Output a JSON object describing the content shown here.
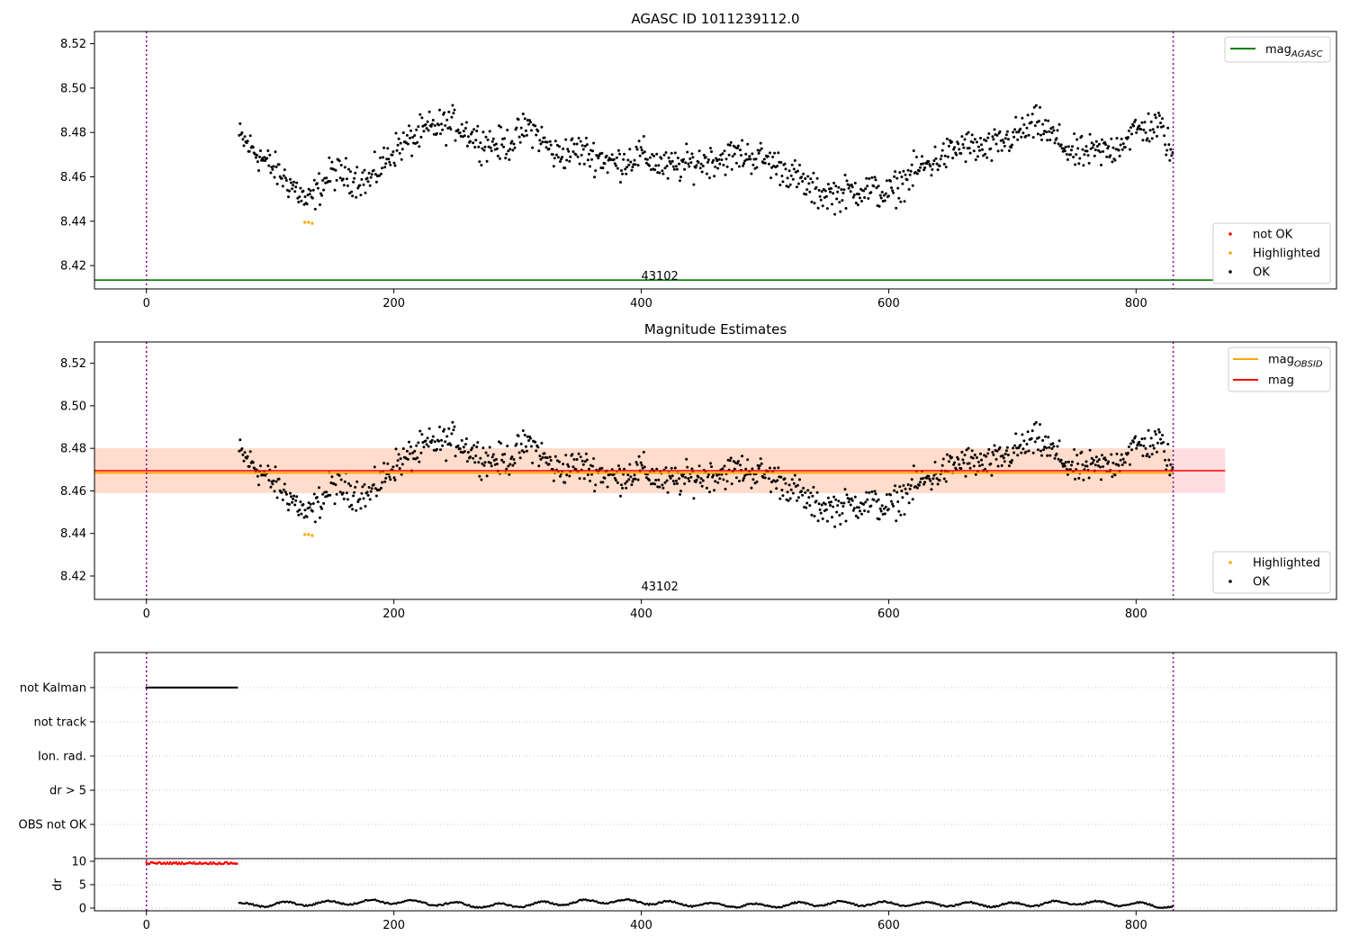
{
  "figure": {
    "panel1": {
      "title": "AGASC ID 1011239112.0",
      "xticks": [
        0,
        200,
        400,
        600,
        800
      ],
      "xlim": [
        -42,
        962
      ],
      "yticks": [
        8.42,
        8.44,
        8.46,
        8.48,
        8.5,
        8.52
      ],
      "ylim": [
        8.4095,
        8.5255
      ],
      "obsid_label": "43102",
      "mag_agasc": 8.4135,
      "vlines": [
        0,
        830
      ],
      "legend_top": [
        {
          "label_main": "mag",
          "label_sub": "AGASC",
          "color": "#008000"
        }
      ],
      "legend_bottom": [
        {
          "label": "not OK",
          "color": "#ff0000"
        },
        {
          "label": "Highlighted",
          "color": "#ffa500"
        },
        {
          "label": "OK",
          "color": "#000000"
        }
      ]
    },
    "panel2": {
      "title": "Magnitude Estimates",
      "xticks": [
        0,
        200,
        400,
        600,
        800
      ],
      "xlim": [
        -42,
        962
      ],
      "yticks": [
        8.42,
        8.44,
        8.46,
        8.48,
        8.5,
        8.52
      ],
      "ylim": [
        8.409,
        8.53
      ],
      "obsid_label": "43102",
      "mag": 8.4695,
      "mag_obsid": 8.4685,
      "band_outer": [
        8.459,
        8.48
      ],
      "band_inner": [
        8.459,
        8.48
      ],
      "band_x": [
        -42,
        872
      ],
      "vlines": [
        0,
        830
      ],
      "legend_top": [
        {
          "label_main": "mag",
          "label_sub": "OBSID",
          "color": "#ffa500"
        },
        {
          "label_main": "mag",
          "label_sub": "",
          "color": "#ff0000"
        }
      ],
      "legend_bottom": [
        {
          "label": "Highlighted",
          "color": "#ffa500"
        },
        {
          "label": "OK",
          "color": "#000000"
        }
      ]
    },
    "panel3": {
      "flag_labels": [
        "not Kalman",
        "not track",
        "Ion. rad.",
        "dr > 5",
        "OBS not OK"
      ],
      "dr_label": "dr",
      "dr_ticks": [
        0,
        5,
        10
      ],
      "xticks": [
        0,
        200,
        400,
        600,
        800
      ],
      "xlim": [
        -42,
        962
      ],
      "vlines": [
        0,
        830
      ]
    }
  },
  "chart_data": [
    {
      "type": "scatter",
      "title": "AGASC ID 1011239112.0",
      "xlabel": "",
      "ylabel": "",
      "xlim": [
        -42,
        962
      ],
      "ylim": [
        8.4095,
        8.5255
      ],
      "grid": false,
      "legend_placement": "top-right and bottom-right",
      "annotation": "43102",
      "series": [
        {
          "name": "OK",
          "color": "#000000",
          "x": [
            75,
            100,
            120,
            130,
            150,
            180,
            200,
            230,
            250,
            270,
            290,
            310,
            330,
            350,
            380,
            400,
            420,
            450,
            480,
            500,
            520,
            540,
            560,
            580,
            600,
            620,
            640,
            660,
            680,
            700,
            720,
            750,
            780,
            800,
            820,
            830
          ],
          "y": [
            8.478,
            8.465,
            8.455,
            8.448,
            8.462,
            8.458,
            8.472,
            8.482,
            8.484,
            8.476,
            8.474,
            8.483,
            8.47,
            8.472,
            8.466,
            8.47,
            8.464,
            8.467,
            8.47,
            8.468,
            8.462,
            8.453,
            8.452,
            8.455,
            8.452,
            8.462,
            8.468,
            8.474,
            8.472,
            8.478,
            8.484,
            8.47,
            8.472,
            8.481,
            8.483,
            8.468
          ]
        },
        {
          "name": "Highlighted",
          "color": "#ffa500",
          "x": [
            128,
            131,
            134
          ],
          "y": [
            8.4395,
            8.4395,
            8.439
          ]
        },
        {
          "name": "mag_AGASC",
          "color": "#008000",
          "x": [
            -42,
            872
          ],
          "y": [
            8.4135,
            8.4135
          ]
        }
      ]
    },
    {
      "type": "scatter",
      "title": "Magnitude Estimates",
      "xlabel": "",
      "ylabel": "",
      "xlim": [
        -42,
        962
      ],
      "ylim": [
        8.409,
        8.53
      ],
      "grid": false,
      "legend_placement": "top-right and bottom-right",
      "annotation": "43102",
      "series": [
        {
          "name": "OK",
          "color": "#000000",
          "x": [
            75,
            100,
            120,
            130,
            150,
            180,
            200,
            230,
            250,
            270,
            290,
            310,
            330,
            350,
            380,
            400,
            420,
            450,
            480,
            500,
            520,
            540,
            560,
            580,
            600,
            620,
            640,
            660,
            680,
            700,
            720,
            750,
            780,
            800,
            820,
            830
          ],
          "y": [
            8.478,
            8.465,
            8.455,
            8.448,
            8.462,
            8.458,
            8.472,
            8.482,
            8.484,
            8.476,
            8.474,
            8.483,
            8.47,
            8.472,
            8.466,
            8.47,
            8.464,
            8.467,
            8.47,
            8.468,
            8.462,
            8.453,
            8.452,
            8.455,
            8.452,
            8.462,
            8.468,
            8.474,
            8.472,
            8.478,
            8.484,
            8.47,
            8.472,
            8.481,
            8.483,
            8.468
          ]
        },
        {
          "name": "Highlighted",
          "color": "#ffa500",
          "x": [
            128,
            131,
            134
          ],
          "y": [
            8.4395,
            8.4395,
            8.439
          ]
        },
        {
          "name": "mag_OBSID",
          "color": "#ffa500",
          "x": [
            -42,
            872
          ],
          "y": [
            8.4685,
            8.4685
          ]
        },
        {
          "name": "mag",
          "color": "#ff0000",
          "x": [
            -42,
            872
          ],
          "y": [
            8.4695,
            8.4695
          ]
        }
      ]
    },
    {
      "type": "scatter",
      "title": "",
      "xlabel": "",
      "ylabel": "dr",
      "xlim": [
        -42,
        962
      ],
      "grid": true,
      "categories": [
        "not Kalman",
        "not track",
        "Ion. rad.",
        "dr > 5",
        "OBS not OK"
      ],
      "series": [
        {
          "name": "not Kalman",
          "color": "#000000",
          "x_range": [
            0,
            74
          ]
        },
        {
          "name": "dr (not OK)",
          "color": "#ff0000",
          "x_range": [
            0,
            74
          ],
          "y": 10
        },
        {
          "name": "dr (OK)",
          "color": "#000000",
          "x": [
            75,
            100,
            150,
            175,
            200,
            250,
            280,
            320,
            370,
            400,
            450,
            500,
            550,
            600,
            650,
            700,
            750,
            800,
            830
          ],
          "y": [
            0.6,
            0.8,
            1.1,
            1.3,
            1.4,
            0.8,
            0.4,
            0.9,
            1.5,
            1.3,
            0.7,
            0.5,
            1.0,
            0.9,
            0.8,
            0.7,
            1.2,
            0.8,
            0.4
          ]
        }
      ]
    }
  ]
}
